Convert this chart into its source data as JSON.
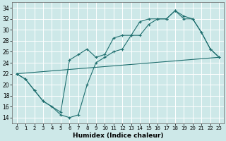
{
  "xlabel": "Humidex (Indice chaleur)",
  "ylabel": "",
  "bg_color": "#cde8e8",
  "grid_color": "#b8d8d8",
  "line_color": "#1e6e6e",
  "xlim": [
    -0.5,
    23.5
  ],
  "ylim": [
    13,
    35
  ],
  "xticks": [
    0,
    1,
    2,
    3,
    4,
    5,
    6,
    7,
    8,
    9,
    10,
    11,
    12,
    13,
    14,
    15,
    16,
    17,
    18,
    19,
    20,
    21,
    22,
    23
  ],
  "yticks": [
    14,
    16,
    18,
    20,
    22,
    24,
    26,
    28,
    30,
    32,
    34
  ],
  "line1_x": [
    0,
    1,
    2,
    3,
    4,
    5,
    6,
    7,
    8,
    9,
    10,
    11,
    12,
    13,
    14,
    15,
    16,
    17,
    18,
    19,
    20,
    21,
    22,
    23
  ],
  "line1_y": [
    22,
    21,
    19,
    17,
    16,
    14.5,
    14,
    14.5,
    20,
    24,
    25,
    26,
    26.5,
    29,
    29,
    31,
    32,
    32,
    33.5,
    32,
    32,
    29.5,
    26.5,
    25
  ],
  "line2_x": [
    0,
    1,
    2,
    3,
    5,
    6,
    7,
    8,
    9,
    10,
    11,
    12,
    13,
    14,
    15,
    16,
    17,
    18,
    19,
    20,
    21,
    22,
    23
  ],
  "line2_y": [
    22,
    21,
    19,
    17,
    15,
    24.5,
    25.5,
    26.5,
    25,
    25.5,
    28.5,
    29,
    29,
    31.5,
    32,
    32,
    32,
    33.5,
    32.5,
    32,
    29.5,
    26.5,
    25
  ],
  "line3_x": [
    0,
    23
  ],
  "line3_y": [
    22,
    25
  ]
}
